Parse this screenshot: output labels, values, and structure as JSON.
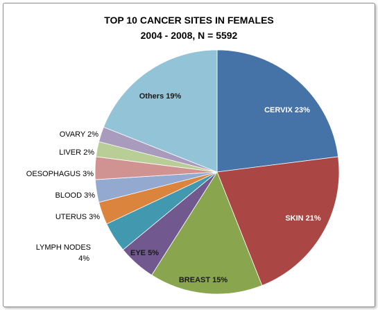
{
  "chart_data": {
    "type": "pie",
    "title": "TOP 10 CANCER SITES IN FEMALES",
    "subtitle": "2004 - 2008, N = 5592",
    "slices": [
      {
        "label": "CERVIX 23%",
        "value": 23,
        "color": "#4572a7"
      },
      {
        "label": "SKIN 21%",
        "value": 21,
        "color": "#aa4643"
      },
      {
        "label": "BREAST 15%",
        "value": 15,
        "color": "#89a54e"
      },
      {
        "label": "EYE 5%",
        "value": 5,
        "color": "#71588f"
      },
      {
        "label": "LYMPH NODES 4%",
        "value": 4,
        "color": "#4198af"
      },
      {
        "label": "UTERUS 3%",
        "value": 3,
        "color": "#db843d"
      },
      {
        "label": "BLOOD 3%",
        "value": 3,
        "color": "#93a9cf"
      },
      {
        "label": "OESOPHAGUS 3%",
        "value": 3,
        "color": "#d19392"
      },
      {
        "label": "LIVER 2%",
        "value": 2,
        "color": "#b9cd96"
      },
      {
        "label": "OVARY 2%",
        "value": 2,
        "color": "#a99bbd"
      },
      {
        "label": "Others 19%",
        "value": 19,
        "color": "#92c3d6"
      }
    ],
    "legend": "none"
  }
}
